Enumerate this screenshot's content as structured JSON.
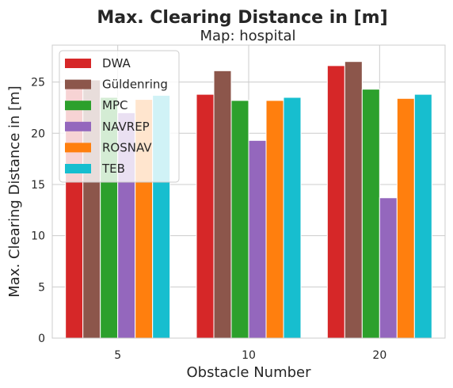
{
  "chart_data": {
    "type": "bar",
    "title": "Max. Clearing Distance in [m]",
    "subtitle": "Map: hospital",
    "xlabel": "Obstacle Number",
    "ylabel": "Max. Clearing Distance in [m]",
    "categories": [
      "5",
      "10",
      "20"
    ],
    "ylim": [
      0,
      28.6
    ],
    "yticks": [
      0,
      5,
      10,
      15,
      20,
      25
    ],
    "grid": true,
    "legend_placement": "top-left",
    "series": [
      {
        "name": "DWA",
        "color": "#d62728",
        "values": [
          24.5,
          23.8,
          26.6
        ]
      },
      {
        "name": "Güldenring",
        "color": "#8c564b",
        "values": [
          25.2,
          26.1,
          27.0
        ]
      },
      {
        "name": "MPC",
        "color": "#2ca02c",
        "values": [
          23.5,
          23.2,
          24.3
        ]
      },
      {
        "name": "NAVREP",
        "color": "#9467bd",
        "values": [
          22.0,
          19.3,
          13.7
        ]
      },
      {
        "name": "ROSNAV",
        "color": "#ff7f0e",
        "values": [
          23.3,
          23.2,
          23.4
        ]
      },
      {
        "name": "TEB",
        "color": "#17becf",
        "values": [
          23.7,
          23.5,
          23.8
        ]
      }
    ]
  }
}
